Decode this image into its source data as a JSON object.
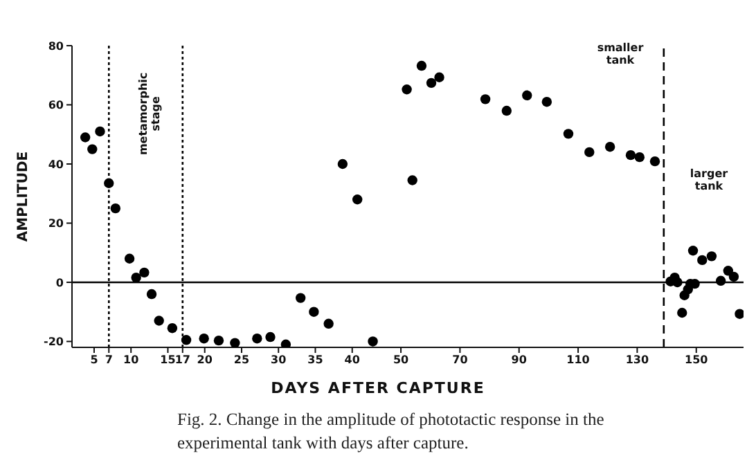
{
  "chart_data": [
    {
      "type": "scatter",
      "ylabel": "AMPLITUDE",
      "xlim": [
        2,
        45
      ],
      "xticks": [
        5,
        7,
        10,
        15,
        17,
        20,
        25,
        30,
        35,
        40
      ],
      "ylim": [
        -22,
        80
      ],
      "yticks": [
        -20,
        0,
        20,
        40,
        60,
        80
      ],
      "marker": "circle",
      "x": [
        3.8,
        4.75,
        5.8,
        7,
        7.9,
        9.8,
        10.7,
        11.8,
        12.8,
        13.8,
        15.6,
        17.5,
        19.9,
        21.9,
        24.1,
        27.1,
        28.9,
        31,
        33,
        34.8,
        36.8,
        38.7,
        40.7,
        42.8
      ],
      "series": [
        {
          "color": "#000000",
          "values": [
            49,
            45,
            51,
            33.5,
            25,
            8,
            1.6,
            3.3,
            -4,
            -13,
            -15.5,
            -19.5,
            -19,
            -19.7,
            -20.5,
            -19,
            -18.5,
            -21,
            -5.3,
            -10,
            -14,
            40,
            28,
            -20
          ]
        }
      ],
      "ref_lines": [
        {
          "axis": "y",
          "value": 0,
          "color": "#000000",
          "line_style": "solid"
        },
        {
          "axis": "x",
          "value": 7,
          "color": "#000000",
          "line_style": "dotted"
        },
        {
          "axis": "x",
          "value": 17,
          "color": "#000000",
          "line_style": "dotted"
        }
      ],
      "annotations": [
        "metamorphic stage"
      ]
    },
    {
      "type": "scatter",
      "xlabel": "DAYS AFTER CAPTURE",
      "xlim": [
        46,
        166
      ],
      "xticks": [
        50,
        70,
        90,
        110,
        130,
        150
      ],
      "ylim": [
        -22,
        80
      ],
      "tick_labels": "x",
      "marker": "circle",
      "x": [
        52,
        53.9,
        57,
        60.3,
        63,
        78.6,
        85.8,
        92.7,
        99.4,
        106.7,
        113.8,
        120.8,
        127.8,
        130.8,
        136,
        141.3,
        142.7,
        143.6,
        145.2,
        146,
        147.2,
        148,
        148.9,
        149.5,
        152,
        155.2,
        158.3,
        160.8,
        162.7,
        164.7
      ],
      "series": [
        {
          "color": "#000000",
          "values": [
            65.2,
            34.5,
            73.2,
            67.4,
            69.3,
            61.9,
            58,
            63.2,
            61,
            50.2,
            44,
            45.8,
            43,
            42.3,
            40.9,
            0.3,
            1.6,
            0,
            -10.3,
            -4.4,
            -2.4,
            -0.5,
            10.7,
            -0.5,
            7.5,
            8.8,
            0.5,
            3.9,
            1.9,
            -10.7
          ]
        }
      ],
      "ref_lines": [
        {
          "axis": "y",
          "value": 0,
          "color": "#000000",
          "line_style": "solid"
        },
        {
          "axis": "x",
          "value": 139,
          "color": "#000000",
          "line_style": "dashed"
        }
      ],
      "annotations": [
        "smaller tank",
        "larger tank",
        "Fig. 2.  Change in the amplitude of phototactic response in the experimental tank with days after capture."
      ]
    }
  ]
}
